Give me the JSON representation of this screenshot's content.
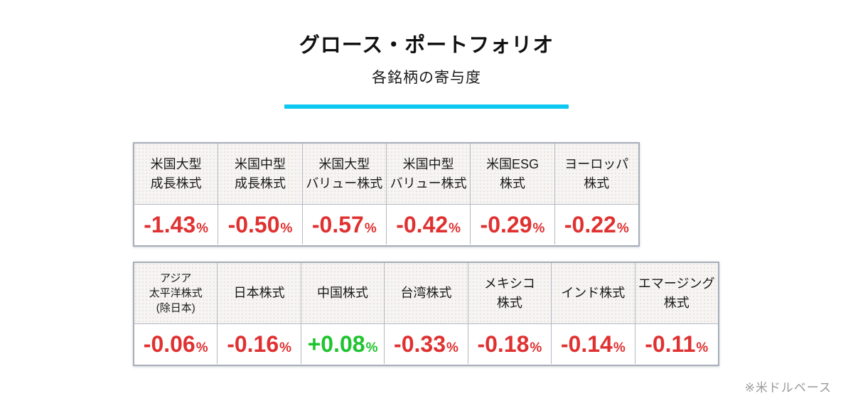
{
  "title": "グロース・ポートフォリオ",
  "subtitle": "各銘柄の寄与度",
  "footnote": "※米ドルベース",
  "percent_sign": "%",
  "colors": {
    "accent_cyan": "#0cc8f2",
    "negative_red": "#e03131",
    "positive_green": "#1ec42f",
    "header_bg": "#f6f5f3",
    "table_border": "#a7aeb9",
    "footnote_gray": "#999999"
  },
  "chart_data": {
    "type": "table",
    "title": "グロース・ポートフォリオ",
    "subtitle": "各銘柄の寄与度",
    "unit": "%",
    "note": "※米ドルベース",
    "tables": [
      {
        "name": "us-and-europe-equities",
        "cells": [
          {
            "label": "米国大型\n成長株式",
            "value": "-1.43",
            "state": "neg"
          },
          {
            "label": "米国中型\n成長株式",
            "value": "-0.50",
            "state": "neg"
          },
          {
            "label": "米国大型\nバリュー株式",
            "value": "-0.57",
            "state": "neg"
          },
          {
            "label": "米国中型\nバリュー株式",
            "value": "-0.42",
            "state": "neg"
          },
          {
            "label": "米国ESG\n株式",
            "value": "-0.29",
            "state": "neg"
          },
          {
            "label": "ヨーロッパ\n株式",
            "value": "-0.22",
            "state": "neg"
          }
        ]
      },
      {
        "name": "asia-and-emerging-equities",
        "cells": [
          {
            "label": "アジア\n太平洋株式\n(除日本)",
            "value": "-0.06",
            "state": "neg"
          },
          {
            "label": "日本株式",
            "value": "-0.16",
            "state": "neg"
          },
          {
            "label": "中国株式",
            "value": "+0.08",
            "state": "pos"
          },
          {
            "label": "台湾株式",
            "value": "-0.33",
            "state": "neg"
          },
          {
            "label": "メキシコ\n株式",
            "value": "-0.18",
            "state": "neg"
          },
          {
            "label": "インド株式",
            "value": "-0.14",
            "state": "neg"
          },
          {
            "label": "エマージング\n株式",
            "value": "-0.11",
            "state": "neg"
          }
        ]
      }
    ]
  }
}
